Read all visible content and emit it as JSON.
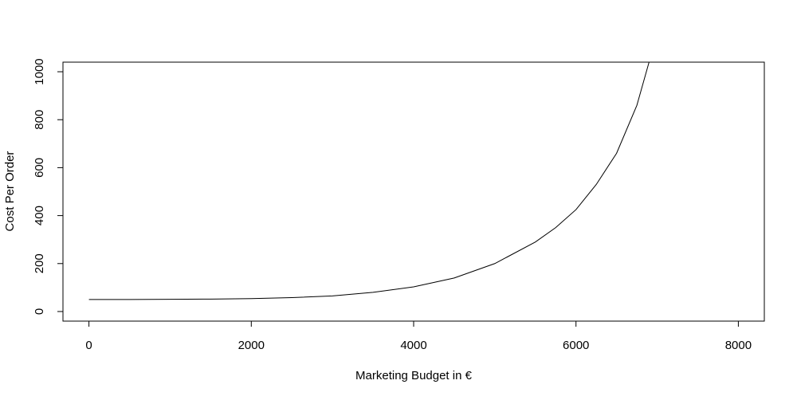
{
  "chart_data": {
    "type": "line",
    "x_label": "Marketing Budget in €",
    "y_label": "Cost Per Order",
    "x": [
      0,
      500,
      1000,
      1500,
      2000,
      2500,
      3000,
      3500,
      4000,
      4500,
      5000,
      5500,
      5750,
      6000,
      6250,
      6500,
      6750,
      6900
    ],
    "values": [
      50,
      50,
      51,
      52,
      54,
      58,
      65,
      80,
      103,
      140,
      200,
      290,
      350,
      425,
      530,
      660,
      860,
      1040
    ],
    "color": "#000000",
    "xlim": [
      -320,
      8320
    ],
    "xticks": [
      0,
      2000,
      4000,
      6000,
      8000
    ],
    "ylim": [
      -40,
      1040
    ],
    "yticks": [
      0,
      200,
      400,
      600,
      800,
      1000
    ]
  }
}
